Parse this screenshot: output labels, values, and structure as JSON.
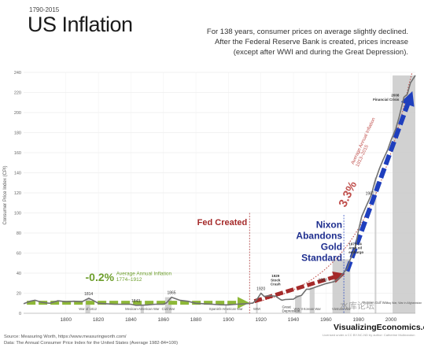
{
  "header": {
    "years": "1790-2015",
    "title": "US Inflation",
    "subtitle": [
      "For 138 years, consumer prices on average slightly declined.",
      "After the Federal Reserve Bank is created, prices increase",
      "(except after WWI and during the Great Depression)."
    ]
  },
  "footer": {
    "source": "Source: Measuring Worth, https://www.measuringworth.com/",
    "data_note": "Data: The Annual Consumer Price Index for the United States (Average 1982-84=100)",
    "brand": "VisualizingEconomics.com",
    "license": "Licensed under a CC BY-NC-ND by author: Catherine Mulbrandon",
    "watermark": "水库论坛"
  },
  "colors": {
    "line": "#707070",
    "war_bar": "#cccccc",
    "green": "#6d9e2c",
    "green_arrow": "#8eb838",
    "red": "#a52a2a",
    "blue": "#1f3fbd",
    "dotted_red": "#c0504d",
    "grid": "#e6e6e6"
  },
  "chart_data": {
    "type": "line",
    "ylabel": "Consumer Price Index (CPI)",
    "xlim": [
      1774,
      2015
    ],
    "ylim": [
      0,
      240
    ],
    "x_ticks": [
      1800,
      1820,
      1840,
      1860,
      1880,
      1900,
      1920,
      1940,
      1960,
      1980,
      2000
    ],
    "y_ticks": [
      0,
      20,
      40,
      60,
      80,
      100,
      120,
      140,
      160,
      180,
      200,
      220,
      240
    ],
    "grid": true,
    "series": [
      {
        "x": [
          1774,
          1778,
          1781,
          1785,
          1790,
          1795,
          1800,
          1805,
          1810,
          1814,
          1816,
          1820,
          1825,
          1830,
          1835,
          1840,
          1843,
          1850,
          1855,
          1860,
          1862,
          1865,
          1870,
          1875,
          1880,
          1885,
          1890,
          1895,
          1900,
          1905,
          1910,
          1913,
          1915,
          1917,
          1918,
          1920,
          1922,
          1925,
          1929,
          1932,
          1933,
          1935,
          1940,
          1942,
          1945,
          1948,
          1950,
          1955,
          1960,
          1965,
          1968,
          1970,
          1973,
          1975,
          1978,
          1980,
          1982,
          1985,
          1988,
          1990,
          1993,
          1995,
          1998,
          2000,
          2003,
          2005,
          2008,
          2010,
          2012,
          2015
        ],
        "y": [
          9.5,
          12,
          13,
          11,
          10,
          12.5,
          11.5,
          12,
          11.5,
          15,
          13.5,
          10,
          9.5,
          9,
          9,
          9,
          7.9,
          8.3,
          9,
          9,
          10.5,
          16,
          13,
          12,
          10,
          9.5,
          9,
          8.5,
          8.4,
          9,
          9.5,
          9.9,
          10.1,
          13,
          15,
          20,
          16.8,
          17.5,
          17.1,
          13.7,
          13,
          13.7,
          14,
          16.3,
          18,
          24,
          24,
          26.8,
          29.6,
          31.5,
          34.8,
          38.8,
          44.4,
          53.8,
          65.2,
          82.4,
          96.5,
          107.6,
          118.3,
          130.7,
          144.5,
          152.4,
          163,
          172.2,
          184,
          195.3,
          215.3,
          218.1,
          229.6,
          237
        ]
      }
    ],
    "war_bars": [
      {
        "start": 1812,
        "end": 1815,
        "label": "War of 1812"
      },
      {
        "start": 1846,
        "end": 1848,
        "label": "Mexican-American War"
      },
      {
        "start": 1861,
        "end": 1865,
        "label": "Civil War"
      },
      {
        "start": 1898,
        "end": 1899,
        "label": "Spanish-American War"
      },
      {
        "start": 1917,
        "end": 1918,
        "label": "WWI"
      },
      {
        "start": 1941,
        "end": 1945,
        "label": "WW II"
      },
      {
        "start": 1950,
        "end": 1953,
        "label": "Korean War"
      },
      {
        "start": 1964,
        "end": 1975,
        "label": "Vietnam War"
      },
      {
        "start": 1990,
        "end": 1991,
        "label": "Persian Gulf War"
      },
      {
        "start": 2001,
        "end": 2015,
        "label": "Iraq War, War in Afghanistan"
      }
    ],
    "annotations": {
      "fed_created": {
        "label": "Fed Created",
        "year": 1913
      },
      "nixon": {
        "label": [
          "Nixon",
          "Abandons",
          "Gold",
          "Standard"
        ],
        "year": 1971
      },
      "early_rate": {
        "value": "-0.2%",
        "label": "Average Annual Inflation",
        "years": "1774–1912"
      },
      "late_rate": {
        "value": "3.3%",
        "label": "Average Annual Inflation",
        "years": "1913–2015"
      },
      "events": [
        {
          "year": 1814,
          "label": "1814"
        },
        {
          "year": 1843,
          "label": "1843"
        },
        {
          "year": 1865,
          "label": "1865"
        },
        {
          "year": 1920,
          "label": "1920"
        },
        {
          "year": 1929,
          "label": "1929 Stock Crash"
        },
        {
          "year": 1933,
          "label": "Great Depression"
        },
        {
          "year": 1958,
          "label": "1958"
        },
        {
          "year": 1973,
          "label": "1973-74 Arab oil embargo"
        },
        {
          "year": 1987,
          "label": "1987"
        },
        {
          "year": 2008,
          "label": "2008 Financial Crisis"
        }
      ]
    }
  }
}
